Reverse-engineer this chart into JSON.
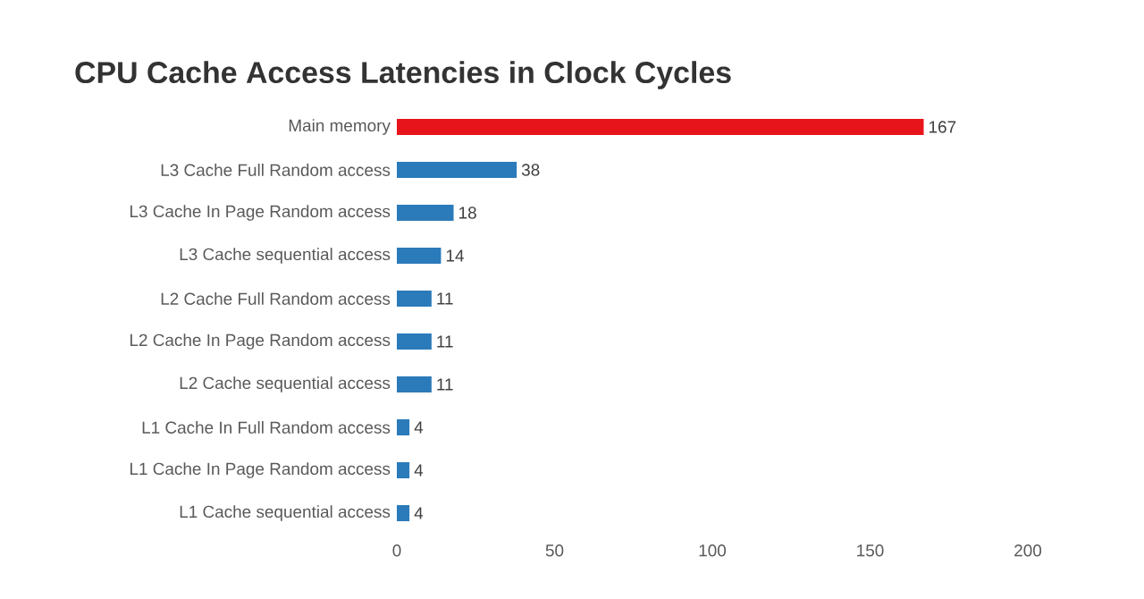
{
  "chart_data": {
    "type": "bar",
    "orientation": "horizontal",
    "title": "CPU Cache Access Latencies in Clock Cycles",
    "categories": [
      "Main memory",
      "L3 Cache Full Random access",
      "L3 Cache In Page Random access",
      "L3 Cache sequential access",
      "L2 Cache Full Random access",
      "L2 Cache In Page Random access",
      "L2 Cache sequential access",
      "L1 Cache In Full Random access",
      "L1 Cache In Page Random access",
      "L1 Cache sequential access"
    ],
    "values": [
      167,
      38,
      18,
      14,
      11,
      11,
      11,
      4,
      4,
      4
    ],
    "colors": [
      "#e8141c",
      "#2b7bba",
      "#2b7bba",
      "#2b7bba",
      "#2b7bba",
      "#2b7bba",
      "#2b7bba",
      "#2b7bba",
      "#2b7bba",
      "#2b7bba"
    ],
    "xlim": [
      0,
      200
    ],
    "xticks": [
      0,
      50,
      100,
      150,
      200
    ],
    "data_labels": true
  }
}
